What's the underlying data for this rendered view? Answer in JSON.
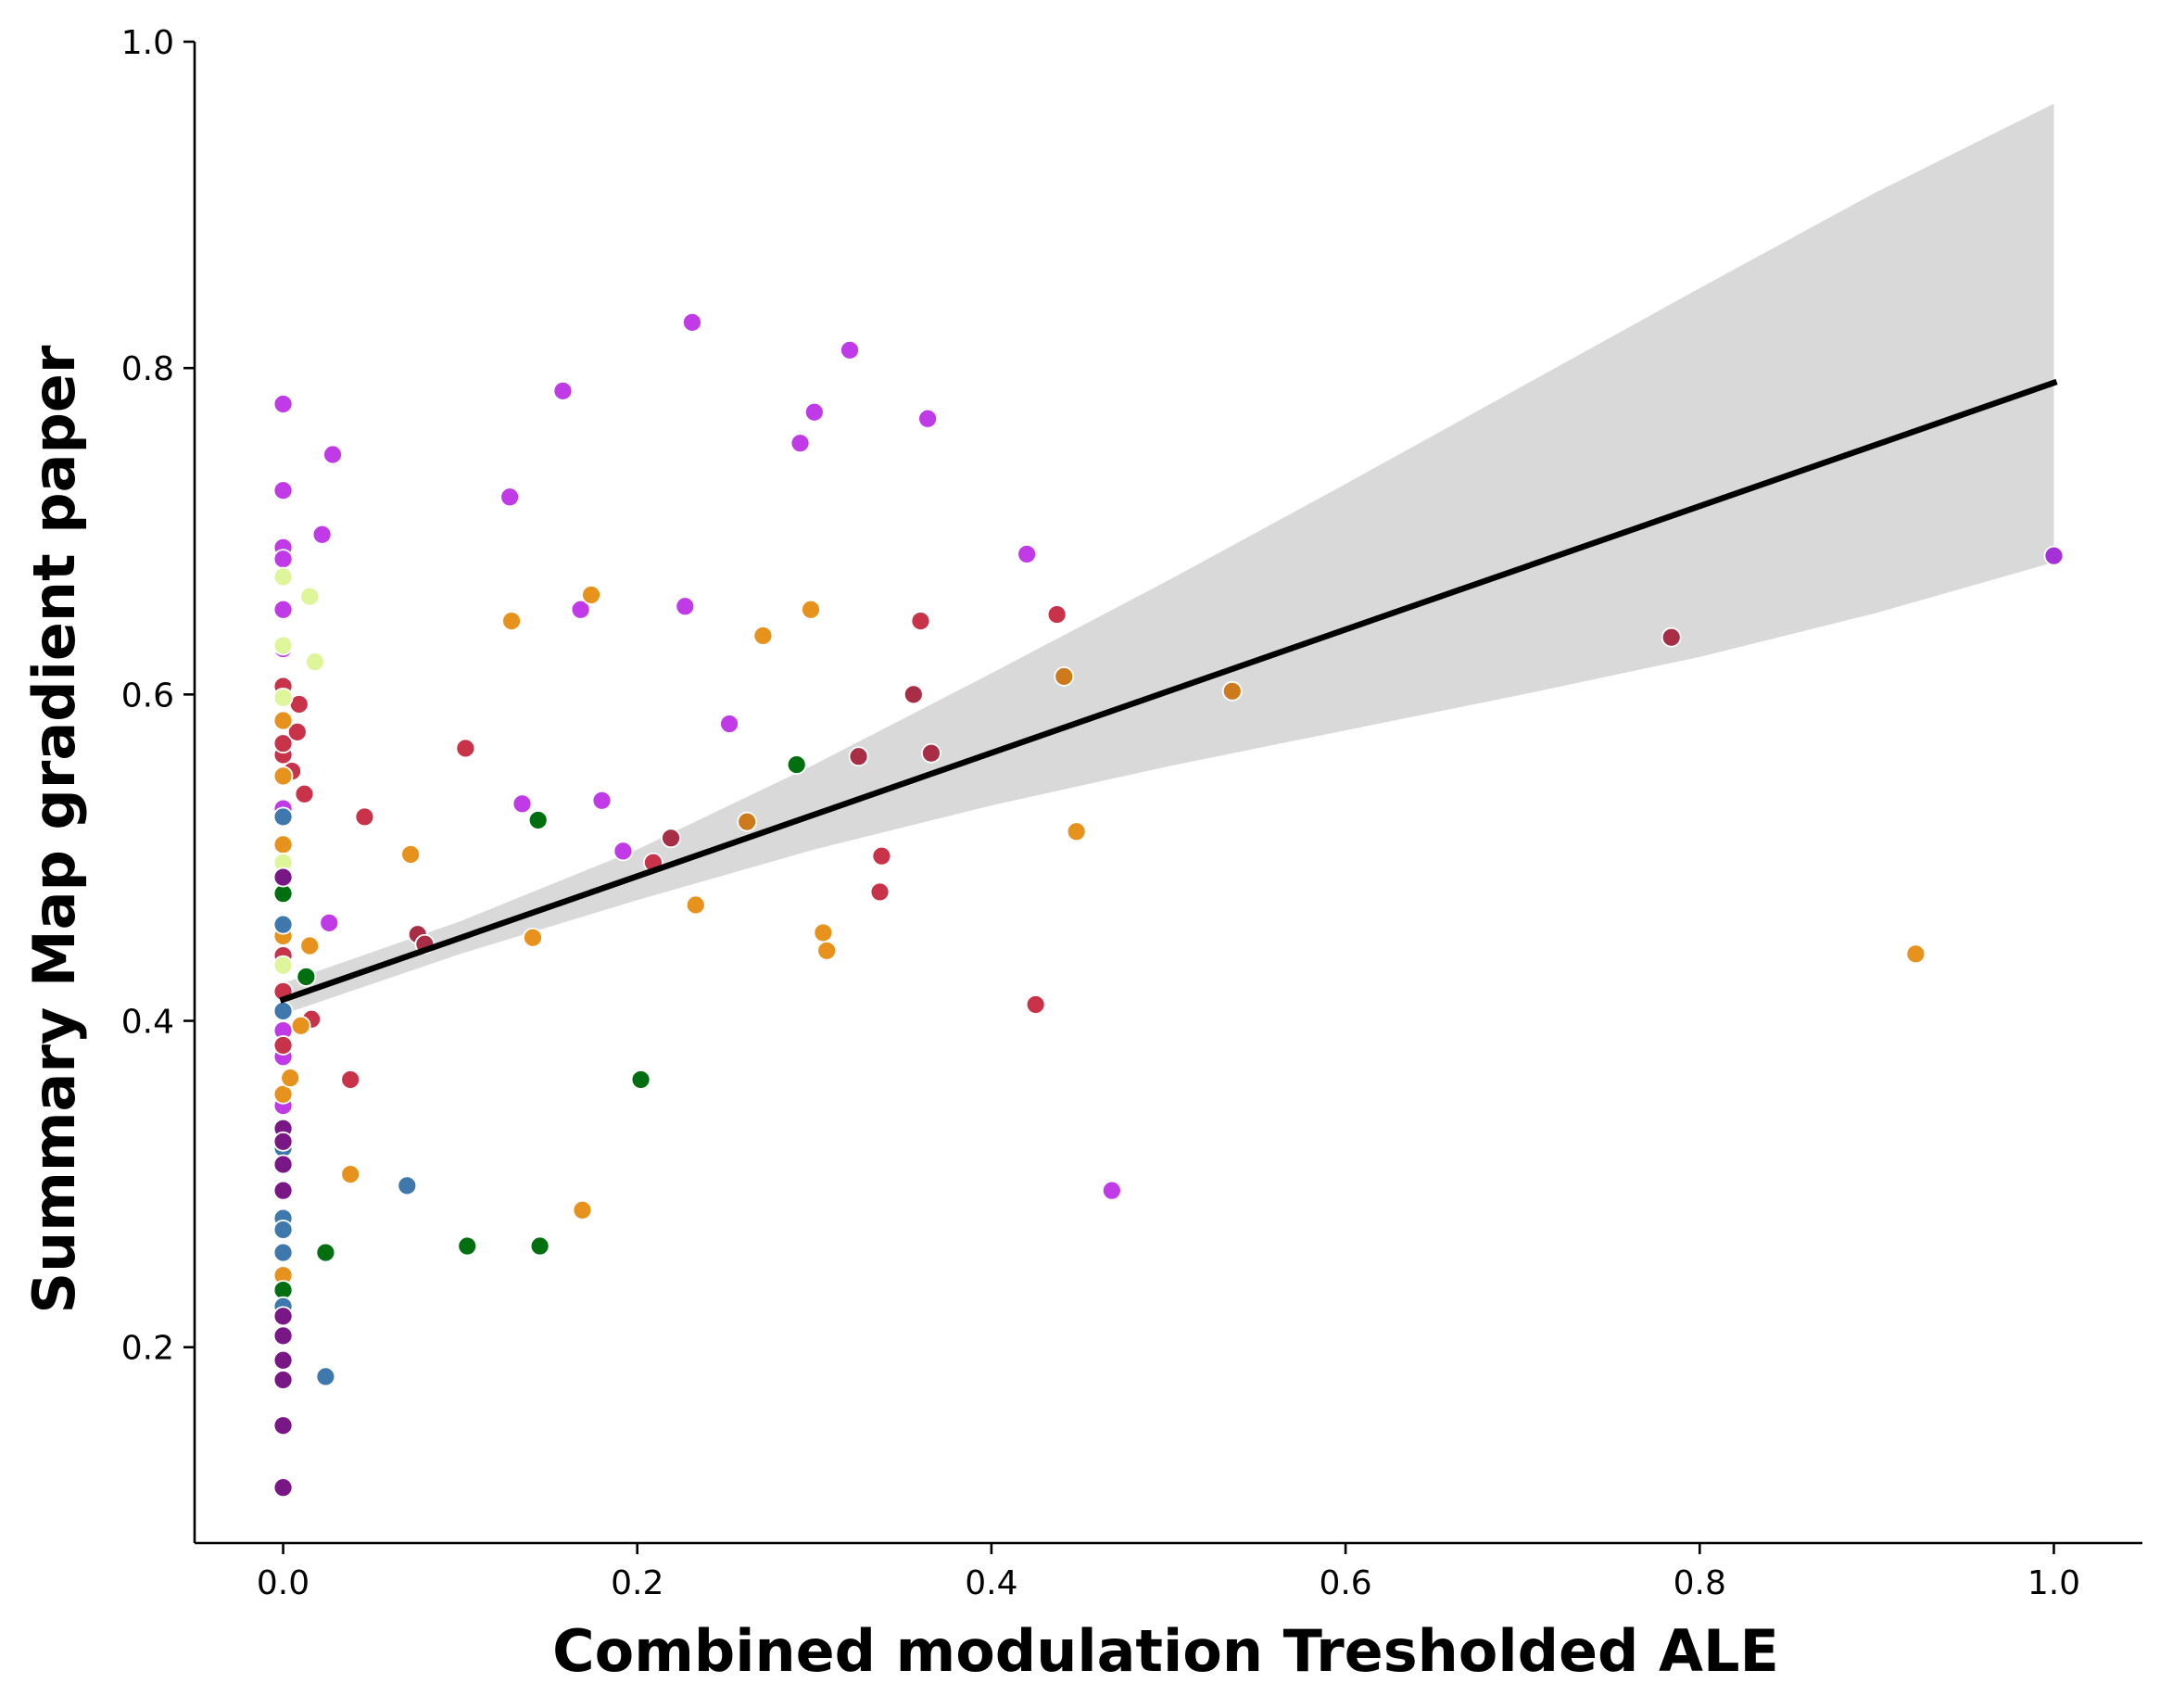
{
  "chart_data": {
    "type": "scatter",
    "title": "",
    "xlabel": "Combined modulation Tresholded ALE",
    "ylabel": "Summary Map gradient paper",
    "xlim": [
      -0.05,
      1.05
    ],
    "ylim": [
      0.08,
      1.0
    ],
    "x_ticks": [
      "0.0",
      "0.2",
      "0.4",
      "0.6",
      "0.8",
      "1.0"
    ],
    "y_ticks": [
      "0.2",
      "0.4",
      "0.6",
      "0.8",
      "1.0"
    ],
    "grid": false,
    "legend": "none",
    "regression": {
      "x": [
        0.0,
        1.0
      ],
      "y": [
        0.413,
        0.791
      ],
      "color": "#000000",
      "ci_band": {
        "x": [
          0.0,
          0.1,
          0.2,
          0.3,
          0.4,
          0.5,
          0.6,
          0.7,
          0.8,
          0.9,
          1.0
        ],
        "lower": [
          0.404,
          0.441,
          0.474,
          0.505,
          0.532,
          0.556,
          0.578,
          0.6,
          0.623,
          0.65,
          0.681
        ],
        "upper": [
          0.423,
          0.461,
          0.505,
          0.557,
          0.613,
          0.67,
          0.729,
          0.789,
          0.849,
          0.908,
          0.962
        ],
        "color": "#d9d9d9"
      }
    },
    "series": [
      {
        "color": "#c03ae8",
        "points": [
          [
            0.0,
            0.778
          ],
          [
            0.0,
            0.725
          ],
          [
            0.0,
            0.69
          ],
          [
            0.0,
            0.683
          ],
          [
            0.0,
            0.652
          ],
          [
            0.0,
            0.628
          ],
          [
            0.0,
            0.53
          ],
          [
            0.0,
            0.394
          ],
          [
            0.0,
            0.378
          ],
          [
            0.0,
            0.348
          ],
          [
            0.022,
            0.698
          ],
          [
            0.028,
            0.747
          ],
          [
            0.026,
            0.46
          ],
          [
            0.128,
            0.721
          ],
          [
            0.135,
            0.533
          ],
          [
            0.158,
            0.786
          ],
          [
            0.168,
            0.652
          ],
          [
            0.18,
            0.535
          ],
          [
            0.227,
            0.654
          ],
          [
            0.231,
            0.828
          ],
          [
            0.252,
            0.582
          ],
          [
            0.292,
            0.754
          ],
          [
            0.3,
            0.773
          ],
          [
            0.32,
            0.811
          ],
          [
            0.364,
            0.769
          ],
          [
            0.42,
            0.686
          ],
          [
            0.468,
            0.296
          ],
          [
            0.192,
            0.504
          ]
        ]
      },
      {
        "color": "#a630d8",
        "points": [
          [
            1.0,
            0.685
          ]
        ]
      },
      {
        "color": "#c8334a",
        "points": [
          [
            0.0,
            0.605
          ],
          [
            0.0,
            0.563
          ],
          [
            0.0,
            0.57
          ],
          [
            0.0,
            0.418
          ],
          [
            0.0,
            0.385
          ],
          [
            0.0,
            0.44
          ],
          [
            0.005,
            0.553
          ],
          [
            0.008,
            0.577
          ],
          [
            0.009,
            0.594
          ],
          [
            0.012,
            0.539
          ],
          [
            0.016,
            0.401
          ],
          [
            0.038,
            0.364
          ],
          [
            0.046,
            0.525
          ],
          [
            0.103,
            0.567
          ],
          [
            0.209,
            0.497
          ],
          [
            0.338,
            0.501
          ],
          [
            0.337,
            0.479
          ],
          [
            0.36,
            0.645
          ],
          [
            0.425,
            0.41
          ],
          [
            0.437,
            0.649
          ]
        ]
      },
      {
        "color": "#a82e45",
        "points": [
          [
            0.076,
            0.453
          ],
          [
            0.08,
            0.447
          ],
          [
            0.219,
            0.512
          ],
          [
            0.325,
            0.562
          ],
          [
            0.356,
            0.6
          ],
          [
            0.366,
            0.564
          ],
          [
            0.784,
            0.635
          ]
        ]
      },
      {
        "color": "#e8921e",
        "points": [
          [
            0.0,
            0.584
          ],
          [
            0.0,
            0.55
          ],
          [
            0.0,
            0.508
          ],
          [
            0.0,
            0.452
          ],
          [
            0.0,
            0.355
          ],
          [
            0.0,
            0.244
          ],
          [
            0.004,
            0.365
          ],
          [
            0.01,
            0.397
          ],
          [
            0.015,
            0.446
          ],
          [
            0.038,
            0.306
          ],
          [
            0.072,
            0.502
          ],
          [
            0.129,
            0.645
          ],
          [
            0.141,
            0.451
          ],
          [
            0.169,
            0.284
          ],
          [
            0.174,
            0.661
          ],
          [
            0.233,
            0.471
          ],
          [
            0.271,
            0.636
          ],
          [
            0.298,
            0.652
          ],
          [
            0.305,
            0.454
          ],
          [
            0.307,
            0.443
          ],
          [
            0.448,
            0.516
          ],
          [
            0.922,
            0.441
          ]
        ]
      },
      {
        "color": "#cc7a1c",
        "points": [
          [
            0.262,
            0.522
          ],
          [
            0.441,
            0.611
          ],
          [
            0.536,
            0.602
          ]
        ]
      },
      {
        "color": "#006f0f",
        "points": [
          [
            0.0,
            0.478
          ],
          [
            0.0,
            0.235
          ],
          [
            0.013,
            0.427
          ],
          [
            0.024,
            0.258
          ],
          [
            0.104,
            0.262
          ],
          [
            0.144,
            0.523
          ],
          [
            0.145,
            0.262
          ],
          [
            0.202,
            0.364
          ],
          [
            0.29,
            0.557
          ]
        ]
      },
      {
        "color": "#3f78ad",
        "points": [
          [
            0.0,
            0.525
          ],
          [
            0.0,
            0.459
          ],
          [
            0.0,
            0.406
          ],
          [
            0.0,
            0.322
          ],
          [
            0.0,
            0.279
          ],
          [
            0.0,
            0.272
          ],
          [
            0.0,
            0.258
          ],
          [
            0.0,
            0.225
          ],
          [
            0.024,
            0.182
          ],
          [
            0.07,
            0.299
          ]
        ]
      },
      {
        "color": "#dff59a",
        "points": [
          [
            0.0,
            0.672
          ],
          [
            0.0,
            0.63
          ],
          [
            0.0,
            0.598
          ],
          [
            0.0,
            0.497
          ],
          [
            0.0,
            0.434
          ],
          [
            0.015,
            0.66
          ],
          [
            0.018,
            0.62
          ]
        ]
      },
      {
        "color": "#7a1787",
        "points": [
          [
            0.0,
            0.488
          ],
          [
            0.0,
            0.334
          ],
          [
            0.0,
            0.326
          ],
          [
            0.0,
            0.312
          ],
          [
            0.0,
            0.296
          ],
          [
            0.0,
            0.219
          ],
          [
            0.0,
            0.207
          ],
          [
            0.0,
            0.192
          ],
          [
            0.0,
            0.18
          ],
          [
            0.0,
            0.152
          ],
          [
            0.0,
            0.114
          ]
        ]
      }
    ]
  }
}
